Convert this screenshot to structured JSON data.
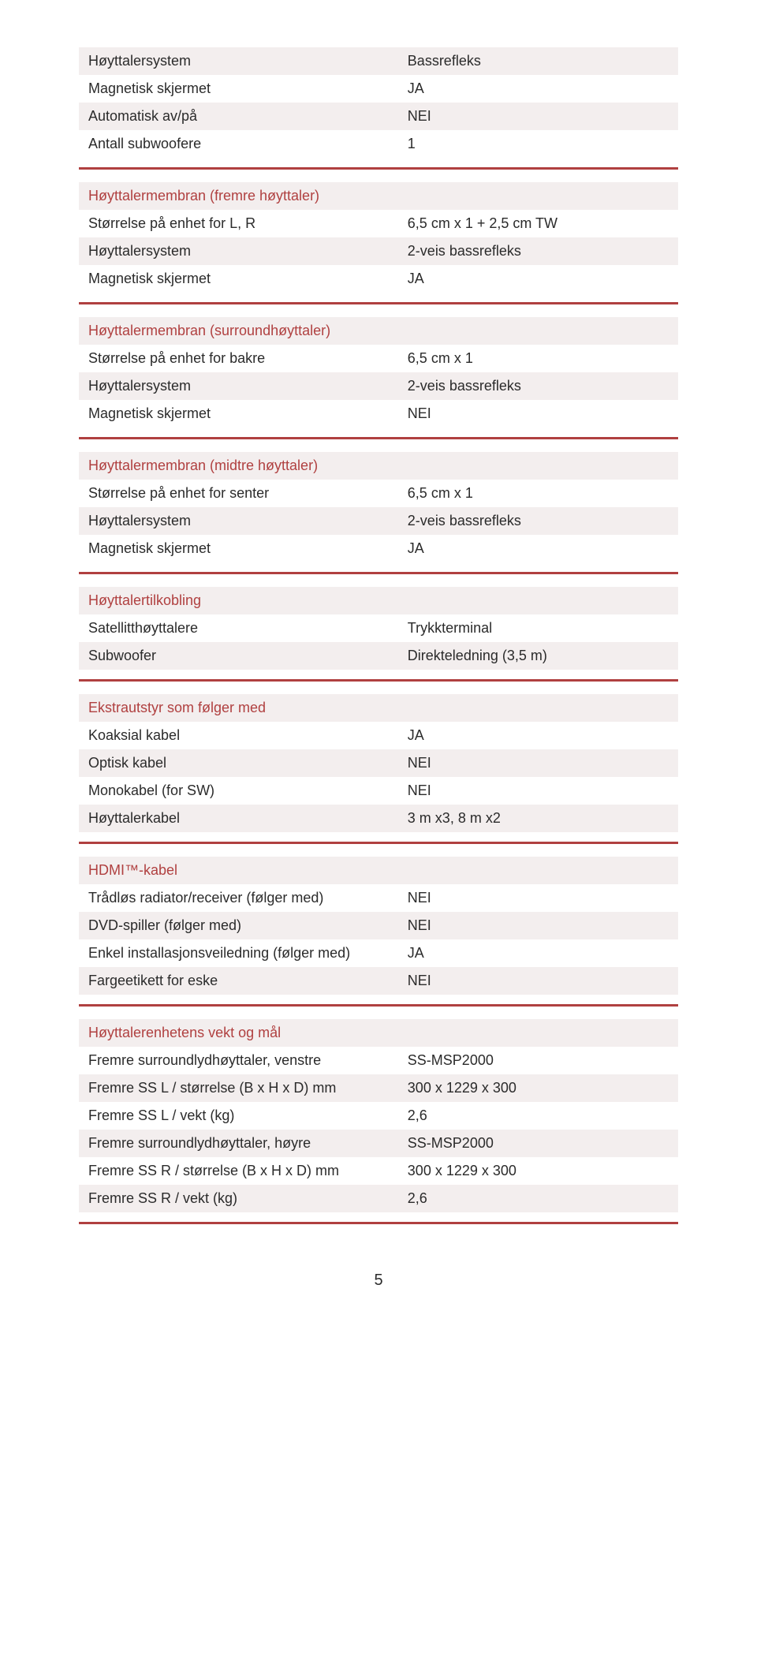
{
  "colors": {
    "accent": "#b04040",
    "row_alt_bg": "#f3eeee",
    "text": "#2b2b2b"
  },
  "sections": [
    {
      "title": null,
      "rows": [
        {
          "label": "Høyttalersystem",
          "value": "Bassrefleks"
        },
        {
          "label": "Magnetisk skjermet",
          "value": "JA"
        },
        {
          "label": "Automatisk av/på",
          "value": "NEI"
        },
        {
          "label": "Antall subwoofere",
          "value": "1"
        }
      ]
    },
    {
      "title": "Høyttalermembran (fremre høyttaler)",
      "rows": [
        {
          "label": "Størrelse på enhet for L, R",
          "value": "6,5 cm x 1 + 2,5 cm TW"
        },
        {
          "label": "Høyttalersystem",
          "value": "2-veis bassrefleks"
        },
        {
          "label": "Magnetisk skjermet",
          "value": "JA"
        }
      ]
    },
    {
      "title": "Høyttalermembran (surroundhøyttaler)",
      "rows": [
        {
          "label": "Størrelse på enhet for bakre",
          "value": "6,5 cm x 1"
        },
        {
          "label": "Høyttalersystem",
          "value": "2-veis bassrefleks"
        },
        {
          "label": "Magnetisk skjermet",
          "value": "NEI"
        }
      ]
    },
    {
      "title": "Høyttalermembran (midtre høyttaler)",
      "rows": [
        {
          "label": "Størrelse på enhet for senter",
          "value": "6,5 cm x 1"
        },
        {
          "label": "Høyttalersystem",
          "value": "2-veis bassrefleks"
        },
        {
          "label": "Magnetisk skjermet",
          "value": "JA"
        }
      ]
    },
    {
      "title": "Høyttalertilkobling",
      "rows": [
        {
          "label": "Satellitthøyttalere",
          "value": "Trykkterminal"
        },
        {
          "label": "Subwoofer",
          "value": "Direkteledning (3,5 m)"
        }
      ]
    },
    {
      "title": "Ekstrautstyr som følger med",
      "rows": [
        {
          "label": "Koaksial kabel",
          "value": "JA"
        },
        {
          "label": "Optisk kabel",
          "value": "NEI"
        },
        {
          "label": "Monokabel (for SW)",
          "value": "NEI"
        },
        {
          "label": "Høyttalerkabel",
          "value": "3 m x3, 8 m x2"
        }
      ]
    },
    {
      "title": "HDMI™-kabel",
      "rows": [
        {
          "label": "Trådløs radiator/receiver (følger med)",
          "value": "NEI"
        },
        {
          "label": "DVD-spiller (følger med)",
          "value": "NEI"
        },
        {
          "label": "Enkel installasjonsveiledning (følger med)",
          "value": "JA"
        },
        {
          "label": "Fargeetikett for eske",
          "value": "NEI"
        }
      ]
    },
    {
      "title": "Høyttalerenhetens vekt og mål",
      "rows": [
        {
          "label": "Fremre surroundlydhøyttaler, venstre",
          "value": "SS-MSP2000"
        },
        {
          "label": "Fremre SS L / størrelse (B x H x D) mm",
          "value": "300 x 1229 x 300"
        },
        {
          "label": "Fremre SS L / vekt (kg)",
          "value": "2,6"
        },
        {
          "label": "Fremre surroundlydhøyttaler, høyre",
          "value": "SS-MSP2000"
        },
        {
          "label": "Fremre SS R / størrelse (B x H x D) mm",
          "value": "300 x 1229 x 300"
        },
        {
          "label": "Fremre SS R / vekt (kg)",
          "value": "2,6"
        }
      ]
    }
  ],
  "page_number": "5"
}
